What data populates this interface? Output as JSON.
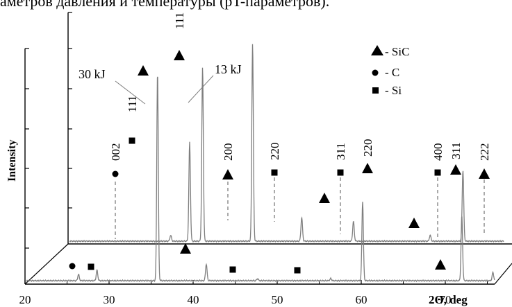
{
  "header_fragment": "аметров давления и температуры (pT-параметров).",
  "chart_data": {
    "type": "line",
    "chart_style": "3d-offset-xrd",
    "xlabel": "2Θ, deg",
    "ylabel": "Intensity",
    "xlim": [
      20,
      80
    ],
    "x_ticks": [
      20,
      30,
      40,
      50,
      60,
      70
    ],
    "grid": false,
    "series": [
      {
        "name": "30 kJ",
        "offset": "back",
        "peaks": [
          {
            "x": 31.9,
            "rel_intensity": 0.03,
            "phase": "C",
            "hkl": "002"
          },
          {
            "x": 34.1,
            "rel_intensity": 0.5,
            "phase": "Si",
            "hkl": "111"
          },
          {
            "x": 35.6,
            "rel_intensity": 0.88,
            "phase": "SiC",
            "hkl": "111"
          },
          {
            "x": 41.4,
            "rel_intensity": 1.0,
            "phase": "SiC",
            "hkl": "111"
          },
          {
            "x": 47.1,
            "rel_intensity": 0.12,
            "phase": "SiC",
            "hkl": "200"
          },
          {
            "x": 53.1,
            "rel_intensity": 0.1,
            "phase": "Si",
            "hkl": "220"
          },
          {
            "x": 62.0,
            "rel_intensity": 0.03,
            "phase": "Si",
            "hkl": "311"
          },
          {
            "x": 65.8,
            "rel_intensity": 0.36,
            "phase": "SiC",
            "hkl": "220"
          },
          {
            "x": 75.1,
            "rel_intensity": 0.02,
            "phase": "Si",
            "hkl": "400"
          },
          {
            "x": 77.5,
            "rel_intensity": 0.25,
            "phase": "SiC",
            "hkl": "311"
          },
          {
            "x": 80.9,
            "rel_intensity": 0.04,
            "phase": "SiC",
            "hkl": "222"
          }
        ]
      },
      {
        "name": "13 kJ",
        "offset": "front",
        "peaks": [
          {
            "x": 26.2,
            "rel_intensity": 0.03,
            "phase": "C"
          },
          {
            "x": 28.4,
            "rel_intensity": 0.05,
            "phase": "Si"
          },
          {
            "x": 35.6,
            "rel_intensity": 1.0,
            "phase": "SiC"
          },
          {
            "x": 41.4,
            "rel_intensity": 0.08,
            "phase": "SiC"
          },
          {
            "x": 47.5,
            "rel_intensity": 0.01,
            "phase": "Si"
          },
          {
            "x": 56.2,
            "rel_intensity": 0.01,
            "phase": "Si"
          },
          {
            "x": 60.0,
            "rel_intensity": 0.38,
            "phase": "SiC"
          },
          {
            "x": 71.8,
            "rel_intensity": 0.31,
            "phase": "SiC"
          },
          {
            "x": 75.5,
            "rel_intensity": 0.04,
            "phase": "SiC"
          }
        ]
      }
    ],
    "legend": {
      "placement": "top-right",
      "items": [
        {
          "marker": "triangle",
          "label": "- SiC"
        },
        {
          "marker": "circle",
          "label": "- C"
        },
        {
          "marker": "square",
          "label": "- Si"
        }
      ]
    },
    "annotations": [
      "30 kJ",
      "13 kJ"
    ],
    "colors": {
      "trace": "#7f7f7f",
      "axis": "#000000",
      "marker": "#000000",
      "guide": "#555555"
    }
  }
}
